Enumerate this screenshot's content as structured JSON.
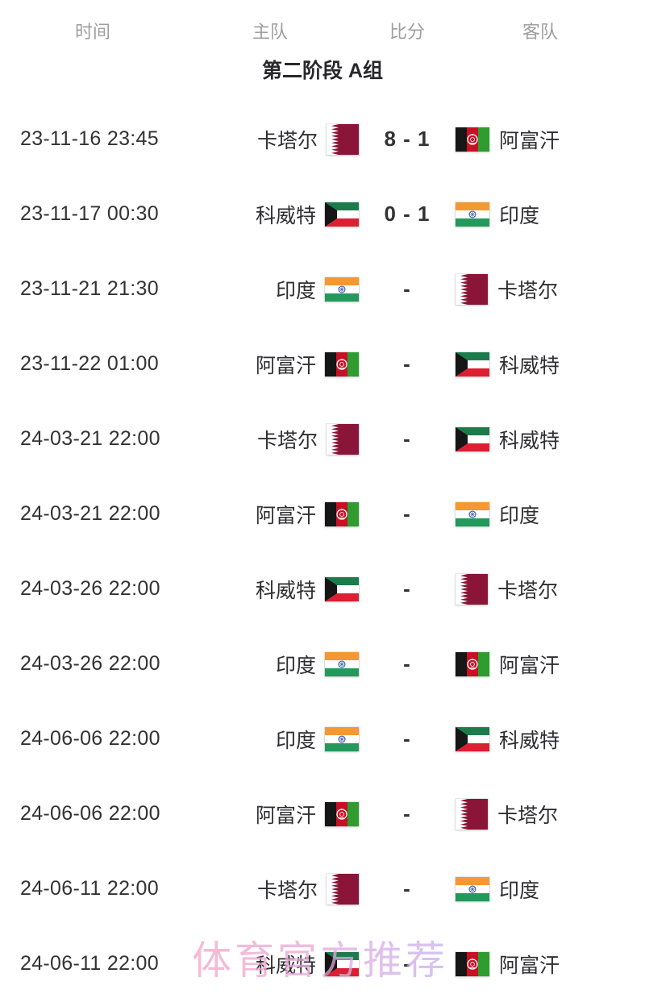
{
  "header": {
    "columns": [
      "时间",
      "主队",
      "比分",
      "客队"
    ]
  },
  "group_title": "第二阶段 A组",
  "watermark": {
    "text": "体育官方推荐"
  },
  "matches": [
    {
      "time": "23-11-16 23:45",
      "home": "卡塔尔",
      "home_flag": "qatar",
      "score": "8 - 1",
      "away": "阿富汗",
      "away_flag": "afghanistan"
    },
    {
      "time": "23-11-17 00:30",
      "home": "科威特",
      "home_flag": "kuwait",
      "score": "0 - 1",
      "away": "印度",
      "away_flag": "india"
    },
    {
      "time": "23-11-21 21:30",
      "home": "印度",
      "home_flag": "india",
      "score": "-",
      "away": "卡塔尔",
      "away_flag": "qatar"
    },
    {
      "time": "23-11-22 01:00",
      "home": "阿富汗",
      "home_flag": "afghanistan",
      "score": "-",
      "away": "科威特",
      "away_flag": "kuwait"
    },
    {
      "time": "24-03-21 22:00",
      "home": "卡塔尔",
      "home_flag": "qatar",
      "score": "-",
      "away": "科威特",
      "away_flag": "kuwait"
    },
    {
      "time": "24-03-21 22:00",
      "home": "阿富汗",
      "home_flag": "afghanistan",
      "score": "-",
      "away": "印度",
      "away_flag": "india"
    },
    {
      "time": "24-03-26 22:00",
      "home": "科威特",
      "home_flag": "kuwait",
      "score": "-",
      "away": "卡塔尔",
      "away_flag": "qatar"
    },
    {
      "time": "24-03-26 22:00",
      "home": "印度",
      "home_flag": "india",
      "score": "-",
      "away": "阿富汗",
      "away_flag": "afghanistan"
    },
    {
      "time": "24-06-06 22:00",
      "home": "印度",
      "home_flag": "india",
      "score": "-",
      "away": "科威特",
      "away_flag": "kuwait"
    },
    {
      "time": "24-06-06 22:00",
      "home": "阿富汗",
      "home_flag": "afghanistan",
      "score": "-",
      "away": "卡塔尔",
      "away_flag": "qatar"
    },
    {
      "time": "24-06-11 22:00",
      "home": "卡塔尔",
      "home_flag": "qatar",
      "score": "-",
      "away": "印度",
      "away_flag": "india"
    },
    {
      "time": "24-06-11 22:00",
      "home": "科威特",
      "home_flag": "kuwait",
      "score": "-",
      "away": "阿富汗",
      "away_flag": "afghanistan"
    }
  ],
  "colors": {
    "header_text": "#9e9ea3",
    "primary_text": "#333333",
    "watermark_pink": "#f7a2c3",
    "watermark_lavender": "#c6aef1",
    "flags": {
      "qatar": {
        "maroon": "#8a1538",
        "white": "#ffffff"
      },
      "kuwait": {
        "green": "#1b7b4b",
        "white": "#ffffff",
        "red": "#dc1f33",
        "black": "#161616"
      },
      "afghanistan": {
        "black": "#161616",
        "red": "#c81025",
        "green": "#2e9c2e",
        "emblem": "#ffffff"
      },
      "india": {
        "saffron": "#f49833",
        "white": "#ffffff",
        "green": "#23995c",
        "chakra": "#3152a3"
      }
    }
  }
}
